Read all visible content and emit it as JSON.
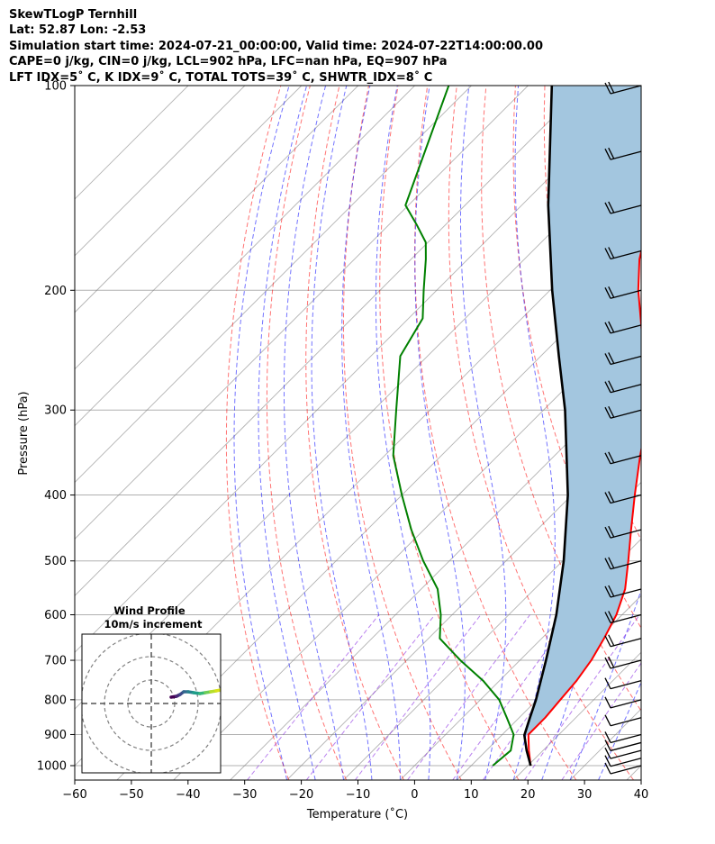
{
  "header": {
    "lines": [
      "SkewTLogP Ternhill",
      "Lat: 52.87   Lon: -2.53",
      "Simulation start time: 2024-07-21_00:00:00, Valid time: 2024-07-22T14:00:00.00",
      "CAPE=0 j/kg, CIN=0 j/kg, LCL=902 hPa, LFC=nan hPa, EQ=907 hPa",
      "LFT IDX=5˚ C, K IDX=9˚ C, TOTAL TOTS=39˚ C, SHWTR_IDX=8˚ C"
    ]
  },
  "chart_data": {
    "type": "skew-t log-p",
    "xlabel": "Temperature (˚C)",
    "ylabel": "Pressure (hPa)",
    "xlim": [
      -60,
      40
    ],
    "ylim": [
      1050,
      100
    ],
    "x_ticks": [
      -60,
      -50,
      -40,
      -30,
      -20,
      -10,
      0,
      10,
      20,
      30,
      40
    ],
    "x_tick_labels": [
      "−60",
      "−50",
      "−40",
      "−30",
      "−20",
      "−10",
      "0",
      "10",
      "20",
      "30",
      "40"
    ],
    "y_ticks": [
      1000,
      900,
      800,
      700,
      600,
      500,
      400,
      300,
      200,
      100
    ],
    "grid": true,
    "temperature_profile": {
      "color": "#ff0000",
      "points": [
        [
          1000,
          20.5
        ],
        [
          950,
          17.5
        ],
        [
          900,
          14.6
        ],
        [
          850,
          14.6
        ],
        [
          800,
          14.1
        ],
        [
          750,
          13.6
        ],
        [
          700,
          12.6
        ],
        [
          650,
          11.0
        ],
        [
          600,
          9.0
        ],
        [
          550,
          6.0
        ],
        [
          500,
          1.6
        ],
        [
          450,
          -3.4
        ],
        [
          400,
          -8.9
        ],
        [
          350,
          -14.9
        ],
        [
          300,
          -21.4
        ],
        [
          270,
          -26.7
        ],
        [
          250,
          -31.6
        ],
        [
          230,
          -36.5
        ],
        [
          200,
          -44.4
        ],
        [
          180,
          -49.7
        ],
        [
          160,
          -54.4
        ],
        [
          150,
          -56.5
        ],
        [
          140,
          -58.5
        ],
        [
          130,
          -61.3
        ],
        [
          115,
          -65.9
        ],
        [
          100,
          -71.5
        ]
      ]
    },
    "dewpoint_profile": {
      "color": "#008000",
      "points": [
        [
          1000,
          13.8
        ],
        [
          950,
          14.3
        ],
        [
          900,
          12.0
        ],
        [
          850,
          7.8
        ],
        [
          800,
          3.3
        ],
        [
          750,
          -2.9
        ],
        [
          700,
          -10.5
        ],
        [
          650,
          -18.0
        ],
        [
          600,
          -22.0
        ],
        [
          550,
          -27.1
        ],
        [
          500,
          -34.6
        ],
        [
          450,
          -42.2
        ],
        [
          400,
          -50.0
        ],
        [
          350,
          -58.5
        ],
        [
          300,
          -66.0
        ],
        [
          250,
          -74.8
        ],
        [
          220,
          -77.5
        ],
        [
          200,
          -82.3
        ],
        [
          180,
          -87.4
        ],
        [
          170,
          -90.4
        ],
        [
          160,
          -95.2
        ],
        [
          150,
          -100.5
        ],
        [
          100,
          -114.0
        ]
      ]
    },
    "parcel_profile": {
      "color": "#000000",
      "points": [
        [
          1000,
          20.5
        ],
        [
          950,
          17.1
        ],
        [
          902,
          14.0
        ],
        [
          850,
          11.9
        ],
        [
          800,
          9.8
        ],
        [
          700,
          4.6
        ],
        [
          600,
          -1.6
        ],
        [
          500,
          -9.8
        ],
        [
          400,
          -20.7
        ],
        [
          300,
          -36.2
        ],
        [
          250,
          -46.8
        ],
        [
          200,
          -59.6
        ],
        [
          150,
          -75.3
        ],
        [
          100,
          -95.8
        ]
      ]
    },
    "shaded_area_color": "#a3c6df",
    "reference_lines": {
      "isotherms_deg_c": [
        -100,
        -90,
        -80,
        -70,
        -60,
        -50,
        -40,
        -30,
        -20,
        -10,
        0,
        10,
        20,
        30,
        40
      ],
      "dry_adiabats_theta_k": [
        250,
        260,
        270,
        280,
        290,
        300,
        310,
        320,
        330,
        340,
        350,
        360,
        370,
        380,
        390,
        400,
        410,
        420,
        430,
        440
      ],
      "moist_adiabats_start_deg_c": [
        -20,
        -15,
        -10,
        -5,
        0,
        5,
        10,
        15,
        20,
        25,
        30,
        35
      ],
      "mixing_ratio_g_kg": [
        0.4,
        1,
        2,
        4,
        7,
        10,
        16,
        24
      ],
      "dry_adiabat_color": "#ff0000",
      "moist_adiabat_color": "#0000ff",
      "mixing_ratio_color": "#8a2be2",
      "isotherm_color": "#808080"
    },
    "wind_barbs": {
      "pressures": [
        1000,
        975,
        950,
        925,
        900,
        850,
        800,
        750,
        700,
        650,
        600,
        550,
        500,
        450,
        400,
        350,
        300,
        275,
        250,
        225,
        200,
        175,
        150,
        125,
        100
      ]
    },
    "wind_profile_inset": {
      "title": "Wind Profile",
      "subtitle": "10m/s increment"
    }
  }
}
